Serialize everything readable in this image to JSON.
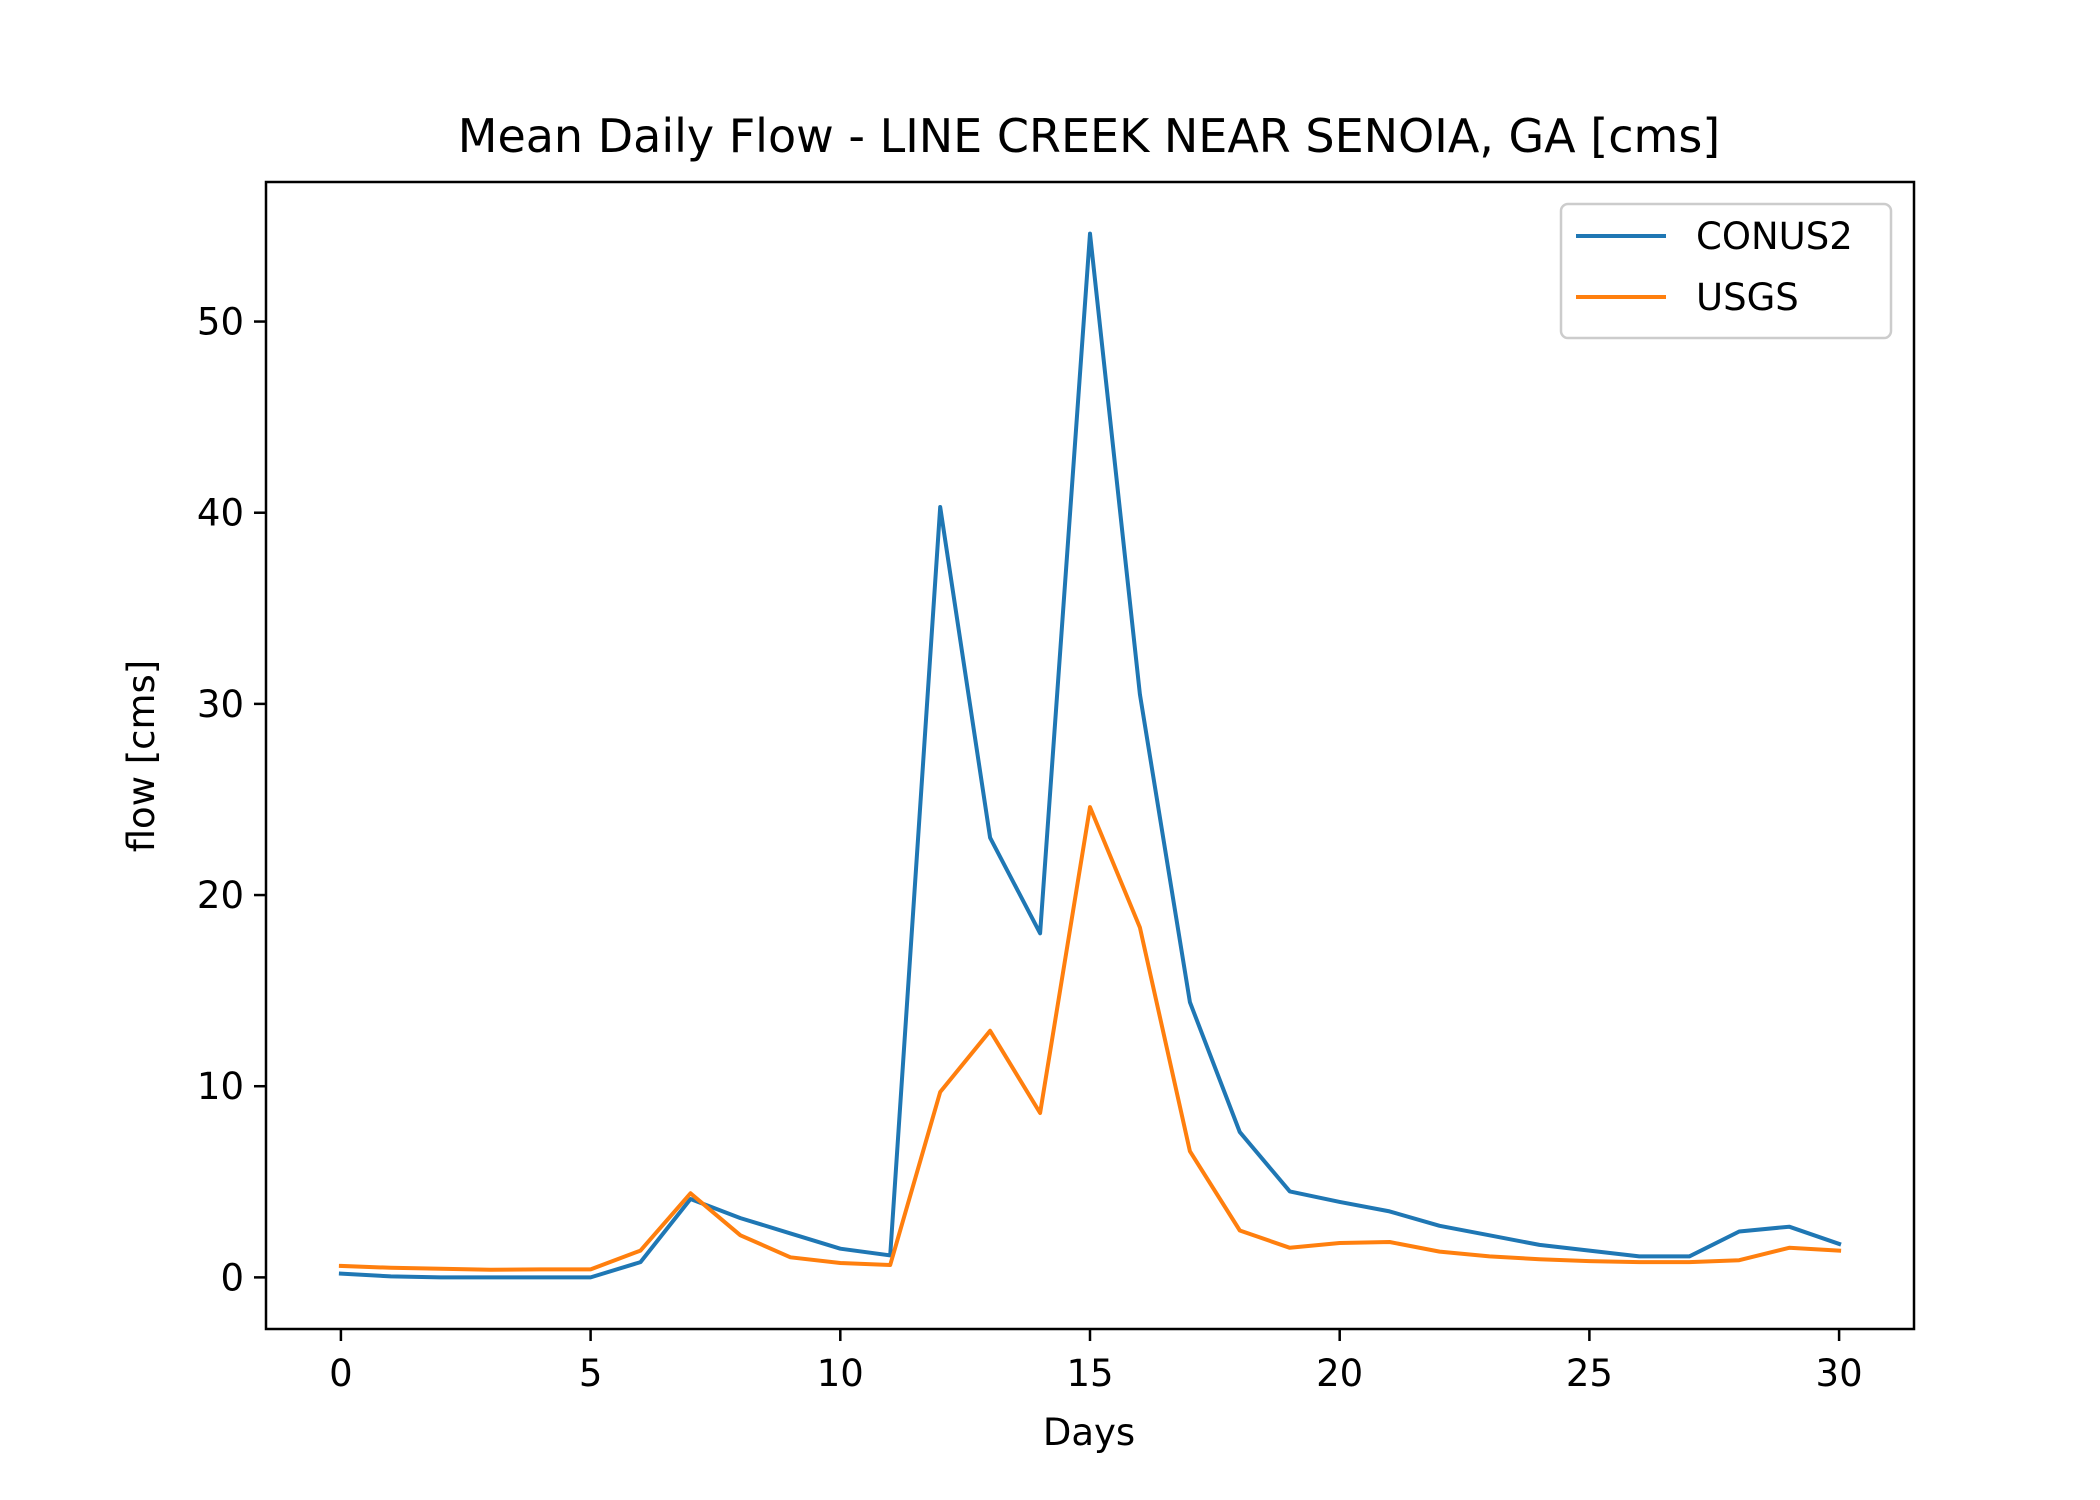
{
  "chart_data": {
    "type": "line",
    "title": "Mean Daily Flow - LINE CREEK NEAR SENOIA, GA [cms]",
    "xlabel": "Days",
    "ylabel": "flow [cms]",
    "xlim": [
      -1.5,
      31.5
    ],
    "ylim": [
      -2.7,
      57.3
    ],
    "xticks": [
      0,
      5,
      10,
      15,
      20,
      25,
      30
    ],
    "yticks": [
      0,
      10,
      20,
      30,
      40,
      50
    ],
    "grid": false,
    "legend_position": "top-right",
    "x": [
      0,
      1,
      2,
      3,
      4,
      5,
      6,
      7,
      8,
      9,
      10,
      11,
      12,
      13,
      14,
      15,
      16,
      17,
      18,
      19,
      20,
      21,
      22,
      23,
      24,
      25,
      26,
      27,
      28,
      29,
      30
    ],
    "series": [
      {
        "name": "CONUS2",
        "color": "#1f77b4",
        "values": [
          0.2,
          0.05,
          0.0,
          0.0,
          0.0,
          0.0,
          0.8,
          4.1,
          3.1,
          2.3,
          1.5,
          1.15,
          40.3,
          23.0,
          18.0,
          54.6,
          30.5,
          14.4,
          7.6,
          4.5,
          3.95,
          3.45,
          2.7,
          2.2,
          1.7,
          1.4,
          1.1,
          1.1,
          2.4,
          2.65,
          1.75
        ]
      },
      {
        "name": "USGS",
        "color": "#ff7f0e",
        "values": [
          0.6,
          0.5,
          0.45,
          0.4,
          0.42,
          0.42,
          1.4,
          4.4,
          2.2,
          1.05,
          0.75,
          0.65,
          9.7,
          12.9,
          8.6,
          24.6,
          18.3,
          6.6,
          2.45,
          1.55,
          1.8,
          1.85,
          1.35,
          1.1,
          0.95,
          0.85,
          0.8,
          0.8,
          0.9,
          1.55,
          1.4
        ]
      }
    ]
  }
}
